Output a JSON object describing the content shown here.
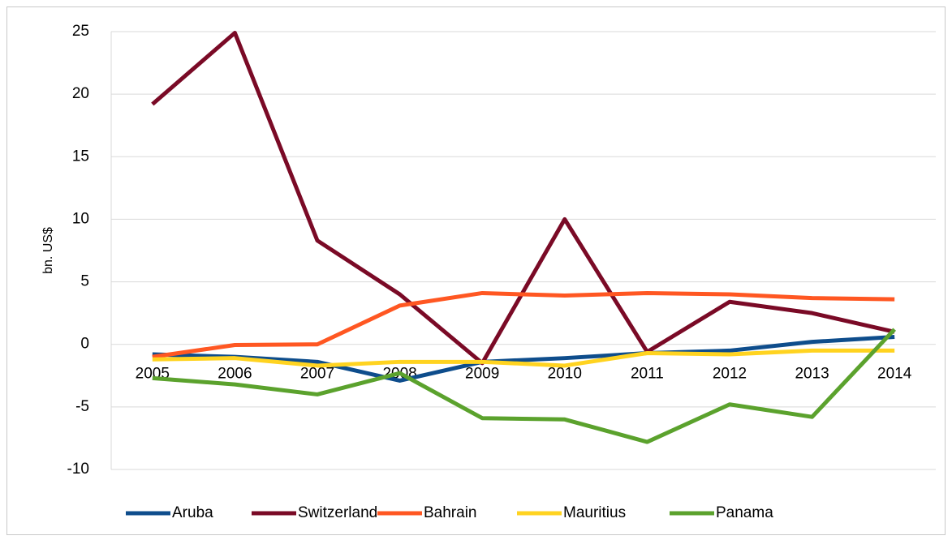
{
  "chart_data": {
    "type": "line",
    "y_label": "bn. US$",
    "categories": [
      "2005",
      "2006",
      "2007",
      "2008",
      "2009",
      "2010",
      "2011",
      "2012",
      "2013",
      "2014"
    ],
    "series": [
      {
        "name": "Aruba",
        "color": "#0e4d8c",
        "values": [
          -0.8,
          -1.0,
          -1.4,
          -2.9,
          -1.4,
          -1.1,
          -0.7,
          -0.5,
          0.2,
          0.6
        ]
      },
      {
        "name": "Switzerland",
        "color": "#7a0a26",
        "values": [
          19.2,
          24.9,
          8.3,
          4.0,
          -1.5,
          10.0,
          -0.6,
          3.4,
          2.5,
          1.0
        ]
      },
      {
        "name": "Bahrain",
        "color": "#ff5722",
        "values": [
          -1.0,
          -0.05,
          0.0,
          3.1,
          4.1,
          3.9,
          4.1,
          4.0,
          3.7,
          3.6
        ]
      },
      {
        "name": "Mauritius",
        "color": "#ffd320",
        "values": [
          -1.2,
          -1.1,
          -1.7,
          -1.4,
          -1.4,
          -1.7,
          -0.7,
          -0.8,
          -0.5,
          -0.5
        ]
      },
      {
        "name": "Panama",
        "color": "#5ba22d",
        "values": [
          -2.7,
          -3.2,
          -4.0,
          -2.3,
          -5.9,
          -6.0,
          -7.8,
          -4.8,
          -5.8,
          1.2
        ]
      }
    ],
    "ylim": [
      -10,
      25
    ],
    "yticks": [
      -10,
      -5,
      0,
      5,
      10,
      15,
      20,
      25
    ],
    "grid": true,
    "legend": "bottom"
  }
}
